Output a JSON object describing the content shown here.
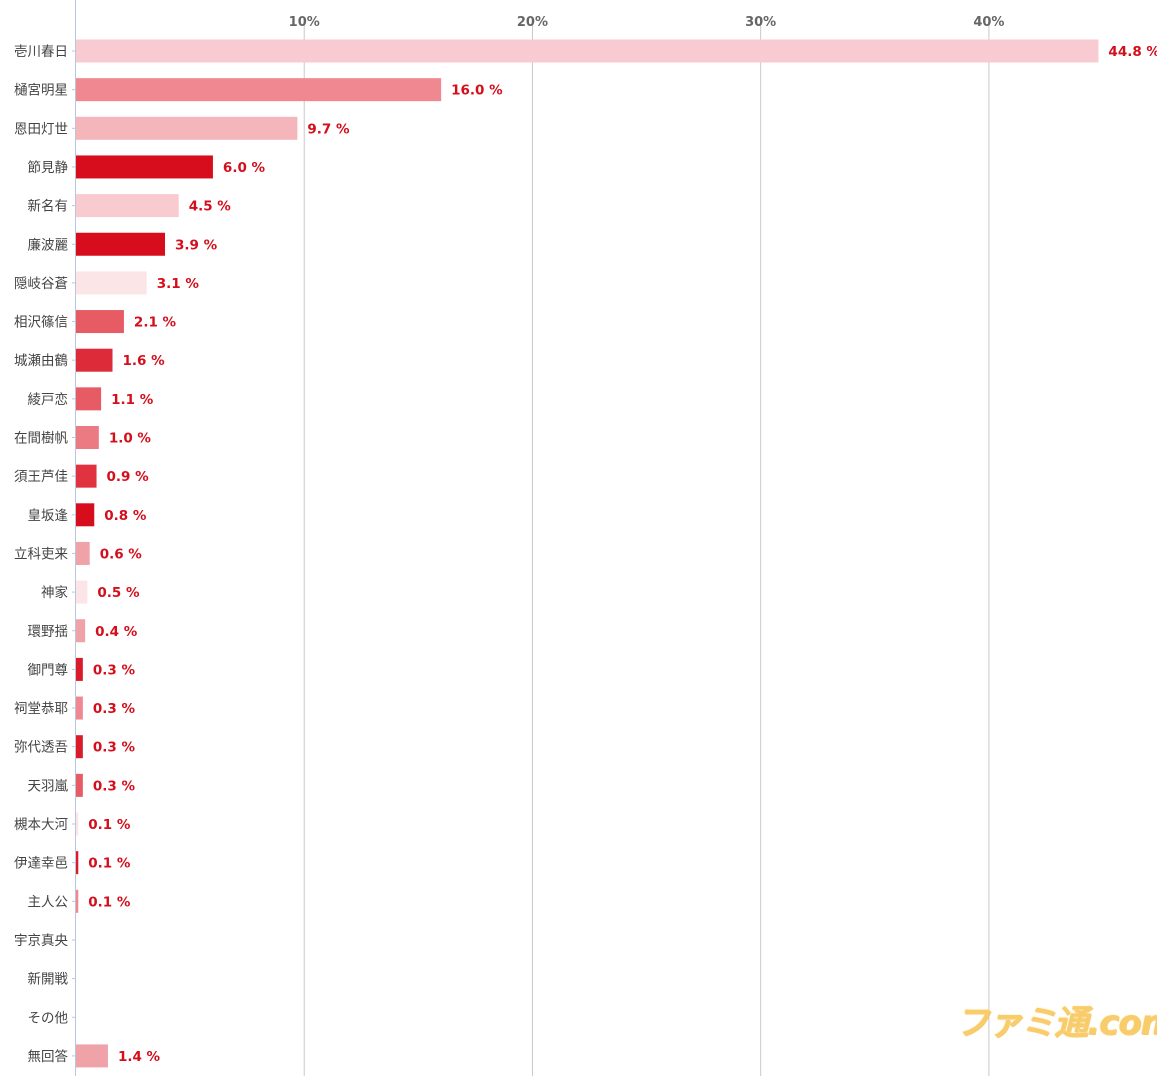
{
  "chart_data": {
    "type": "bar",
    "orientation": "horizontal",
    "title": "",
    "xlabel": "",
    "ylabel": "",
    "xlim": [
      0,
      45
    ],
    "grid": true,
    "legend": "none",
    "tick_values": [
      10,
      20,
      30,
      40
    ],
    "tick_labels": [
      "10%",
      "20%",
      "30%",
      "40%"
    ],
    "label_color": "#d40f1c",
    "categories": [
      "壱川春日",
      "樋宮明星",
      "恩田灯世",
      "節見静",
      "新名有",
      "廉波麗",
      "隠岐谷蒼",
      "相沢篠信",
      "城瀬由鶴",
      "綾戸恋",
      "在間樹帆",
      "須王芦佳",
      "皇坂逢",
      "立科吏来",
      "神家",
      "環野揺",
      "御門尊",
      "祠堂恭耶",
      "弥代透吾",
      "天羽嵐",
      "槻本大河",
      "伊達幸邑",
      "主人公",
      "宇京真央",
      "新開戦",
      "その他",
      "無回答"
    ],
    "values": [
      44.8,
      16.0,
      9.7,
      6.0,
      4.5,
      3.9,
      3.1,
      2.1,
      1.6,
      1.1,
      1.0,
      0.9,
      0.8,
      0.6,
      0.5,
      0.4,
      0.3,
      0.3,
      0.3,
      0.3,
      0.1,
      0.1,
      0.1,
      null,
      null,
      null,
      1.4
    ],
    "value_labels": [
      "44.8 %",
      "16.0 %",
      "9.7 %",
      "6.0 %",
      "4.5 %",
      "3.9 %",
      "3.1 %",
      "2.1 %",
      "1.6 %",
      "1.1 %",
      "1.0 %",
      "0.9 %",
      "0.8 %",
      "0.6 %",
      "0.5 %",
      "0.4 %",
      "0.3 %",
      "0.3 %",
      "0.3 %",
      "0.3 %",
      "0.1 %",
      "0.1 %",
      "0.1 %",
      "",
      "",
      "",
      "1.4 %"
    ],
    "colors": [
      "#f7cbd1",
      "#ef8890",
      "#f4b5bb",
      "#d70d1d",
      "#f8cbd1",
      "#d70d1d",
      "#fce5e7",
      "#e75b64",
      "#de2b39",
      "#e75b64",
      "#ec7a82",
      "#e0323f",
      "#d70d1d",
      "#f0a2a9",
      "#fce5e7",
      "#f0a2a9",
      "#d91b2a",
      "#ef8890",
      "#d91b2a",
      "#e75b64",
      "#fce5e7",
      "#d91b2a",
      "#ef8890",
      "#ffffff",
      "#ffffff",
      "#ffffff",
      "#f0a2a9"
    ]
  },
  "watermark": {
    "text": "ファミ通.com"
  }
}
